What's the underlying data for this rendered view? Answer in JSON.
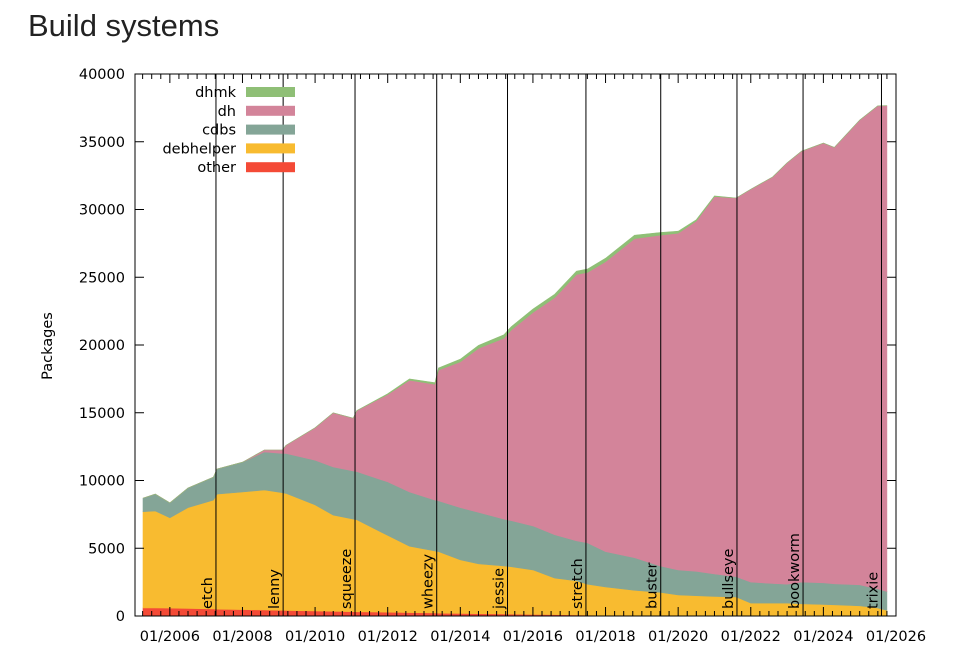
{
  "page": {
    "title": "Build systems"
  },
  "chart_data": {
    "type": "area",
    "stacked": true,
    "title": "Build systems",
    "xlabel": "",
    "ylabel": "Packages",
    "xlim": [
      2005.04,
      2026.0
    ],
    "ylim": [
      0,
      40000
    ],
    "grid": false,
    "legend_position": "top-left",
    "yticks": [
      0,
      5000,
      10000,
      15000,
      20000,
      25000,
      30000,
      35000,
      40000
    ],
    "xticks": [
      {
        "value": 2006,
        "label": "01/2006"
      },
      {
        "value": 2008,
        "label": "01/2008"
      },
      {
        "value": 2010,
        "label": "01/2010"
      },
      {
        "value": 2012,
        "label": "01/2012"
      },
      {
        "value": 2014,
        "label": "01/2014"
      },
      {
        "value": 2016,
        "label": "01/2016"
      },
      {
        "value": 2018,
        "label": "01/2018"
      },
      {
        "value": 2020,
        "label": "01/2020"
      },
      {
        "value": 2022,
        "label": "01/2022"
      },
      {
        "value": 2024,
        "label": "01/2024"
      },
      {
        "value": 2026,
        "label": "01/2026"
      }
    ],
    "releases": [
      {
        "name": "etch",
        "x": 2007.27
      },
      {
        "name": "lenny",
        "x": 2009.12
      },
      {
        "name": "squeeze",
        "x": 2011.1
      },
      {
        "name": "wheezy",
        "x": 2013.35
      },
      {
        "name": "jessie",
        "x": 2015.3
      },
      {
        "name": "stretch",
        "x": 2017.46
      },
      {
        "name": "buster",
        "x": 2019.52
      },
      {
        "name": "bullseye",
        "x": 2021.62
      },
      {
        "name": "bookworm",
        "x": 2023.44
      },
      {
        "name": "trixie",
        "x": 2025.6
      }
    ],
    "x": [
      2005.26,
      2005.6,
      2006.0,
      2006.5,
      2007.2,
      2007.3,
      2008.0,
      2008.6,
      2009.1,
      2009.2,
      2010.0,
      2010.5,
      2011.05,
      2011.15,
      2012.0,
      2012.6,
      2013.3,
      2013.4,
      2014.0,
      2014.5,
      2015.2,
      2015.4,
      2016.0,
      2016.6,
      2017.2,
      2017.5,
      2018.0,
      2018.8,
      2019.5,
      2020.0,
      2020.5,
      2021.0,
      2021.6,
      2022.0,
      2022.6,
      2023.0,
      2023.4,
      2024.0,
      2024.3,
      2025.0,
      2025.5,
      2025.75
    ],
    "series": [
      {
        "name": "other",
        "color": "#f44a36",
        "values": [
          600,
          600,
          580,
          560,
          520,
          500,
          470,
          440,
          420,
          410,
          370,
          350,
          320,
          310,
          280,
          250,
          220,
          210,
          190,
          170,
          150,
          140,
          120,
          100,
          80,
          70,
          50,
          40,
          30,
          20,
          20,
          10,
          10,
          10,
          10,
          10,
          10,
          10,
          10,
          10,
          10,
          10
        ]
      },
      {
        "name": "debhelper",
        "color": "#f8bb30",
        "values": [
          7100,
          7150,
          6670,
          7440,
          8030,
          8500,
          8680,
          8860,
          8680,
          8640,
          7830,
          7100,
          6830,
          6800,
          5670,
          4900,
          4580,
          4540,
          3960,
          3680,
          3550,
          3500,
          3280,
          2700,
          2520,
          2280,
          2100,
          1860,
          1720,
          1530,
          1480,
          1440,
          1390,
          940,
          940,
          940,
          890,
          840,
          820,
          740,
          590,
          400
        ]
      },
      {
        "name": "cdbs",
        "color": "#84a597",
        "values": [
          1000,
          1250,
          1100,
          1450,
          1700,
          1850,
          2200,
          2800,
          2900,
          2950,
          3300,
          3550,
          3550,
          3550,
          3950,
          4000,
          3750,
          3750,
          3850,
          3800,
          3450,
          3400,
          3250,
          3200,
          2950,
          3050,
          2600,
          2400,
          1950,
          1850,
          1800,
          1650,
          1500,
          1550,
          1450,
          1400,
          1600,
          1600,
          1550,
          1550,
          1400,
          1400
        ]
      },
      {
        "name": "dh",
        "color": "#d3849a",
        "values": [
          0,
          0,
          0,
          0,
          0,
          0,
          0,
          150,
          250,
          600,
          2400,
          4000,
          3900,
          4500,
          6450,
          8250,
          8550,
          9650,
          10750,
          12100,
          13350,
          14050,
          15750,
          17500,
          19650,
          19950,
          21400,
          23550,
          24400,
          24850,
          25850,
          27850,
          27950,
          29000,
          30000,
          31100,
          31800,
          32450,
          32200,
          34300,
          35650,
          35850
        ]
      },
      {
        "name": "dhmk",
        "color": "#8fbf76",
        "values": [
          0,
          0,
          0,
          0,
          0,
          0,
          0,
          0,
          0,
          0,
          0,
          0,
          0,
          0,
          50,
          100,
          120,
          150,
          200,
          220,
          250,
          250,
          250,
          250,
          250,
          250,
          250,
          250,
          200,
          150,
          100,
          50,
          0,
          0,
          0,
          0,
          0,
          0,
          0,
          0,
          0,
          0
        ]
      }
    ]
  }
}
